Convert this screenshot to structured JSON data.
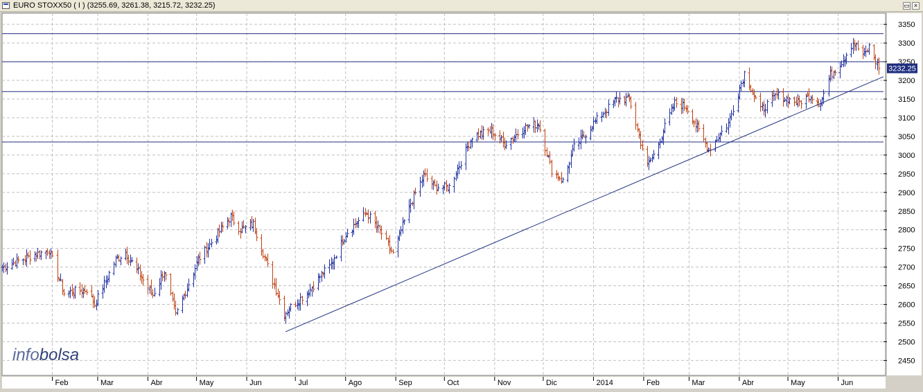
{
  "window": {
    "title": "EURO STOXX50 ( I ) (3255.69, 3261.38, 3215.72, 3232.25)",
    "restore_label": "▭",
    "close_label": "×"
  },
  "watermark": {
    "prefix": "info",
    "suffix": "bolsa"
  },
  "chart_data": {
    "type": "ohlc",
    "symbol": "EURO STOXX50 ( I )",
    "last_bar": {
      "open": 3255.69,
      "high": 3261.38,
      "low": 3215.72,
      "close": 3232.25
    },
    "price_label": "3232.25",
    "ylim": [
      2410,
      3380
    ],
    "yticks": [
      2450,
      2500,
      2550,
      2600,
      2650,
      2700,
      2750,
      2800,
      2850,
      2900,
      2950,
      3000,
      3050,
      3100,
      3150,
      3200,
      3250,
      3300,
      3350
    ],
    "xlim": [
      "2013-01-01",
      "2014-06-29"
    ],
    "xticks": [
      {
        "label": "Feb",
        "date": "2013-02-01"
      },
      {
        "label": "Mar",
        "date": "2013-03-01"
      },
      {
        "label": "Abr",
        "date": "2013-04-01"
      },
      {
        "label": "May",
        "date": "2013-05-01"
      },
      {
        "label": "Jun",
        "date": "2013-06-01"
      },
      {
        "label": "Jul",
        "date": "2013-07-01"
      },
      {
        "label": "Ago",
        "date": "2013-08-01"
      },
      {
        "label": "Sep",
        "date": "2013-09-01"
      },
      {
        "label": "Oct",
        "date": "2013-10-01"
      },
      {
        "label": "Nov",
        "date": "2013-11-01"
      },
      {
        "label": "Dic",
        "date": "2013-12-01"
      },
      {
        "label": "2014",
        "date": "2014-01-01"
      },
      {
        "label": "Feb",
        "date": "2014-02-01"
      },
      {
        "label": "Mar",
        "date": "2014-03-01"
      },
      {
        "label": "Abr",
        "date": "2014-04-01"
      },
      {
        "label": "May",
        "date": "2014-05-01"
      },
      {
        "label": "Jun",
        "date": "2014-06-01"
      }
    ],
    "horizontal_lines": [
      3325,
      3250,
      3170,
      3035
    ],
    "trendline": {
      "start": {
        "date": "2013-06-25",
        "value": 2527
      },
      "end": {
        "date": "2014-06-29",
        "value": 3210
      }
    },
    "grid": true,
    "colors": {
      "up": "#1f2fa0",
      "down": "#c04010",
      "lines": "#1f2f7f",
      "grid": "#c0c0c0"
    },
    "anchors": [
      [
        "2013-01-01",
        2700
      ],
      [
        "2013-01-22",
        2735
      ],
      [
        "2013-01-30",
        2745
      ],
      [
        "2013-02-08",
        2630
      ],
      [
        "2013-02-22",
        2640
      ],
      [
        "2013-02-27",
        2600
      ],
      [
        "2013-03-12",
        2720
      ],
      [
        "2013-03-18",
        2740
      ],
      [
        "2013-04-04",
        2625
      ],
      [
        "2013-04-11",
        2690
      ],
      [
        "2013-04-18",
        2570
      ],
      [
        "2013-05-02",
        2720
      ],
      [
        "2013-05-22",
        2835
      ],
      [
        "2013-05-28",
        2800
      ],
      [
        "2013-06-05",
        2815
      ],
      [
        "2013-06-24",
        2575
      ],
      [
        "2013-06-27",
        2590
      ],
      [
        "2013-07-09",
        2635
      ],
      [
        "2013-07-17",
        2680
      ],
      [
        "2013-07-22",
        2700
      ],
      [
        "2013-08-01",
        2790
      ],
      [
        "2013-08-14",
        2845
      ],
      [
        "2013-08-23",
        2790
      ],
      [
        "2013-08-30",
        2735
      ],
      [
        "2013-09-10",
        2870
      ],
      [
        "2013-09-18",
        2945
      ],
      [
        "2013-09-25",
        2915
      ],
      [
        "2013-10-04",
        2915
      ],
      [
        "2013-10-18",
        3050
      ],
      [
        "2013-10-30",
        3065
      ],
      [
        "2013-11-07",
        3030
      ],
      [
        "2013-11-20",
        3075
      ],
      [
        "2013-11-28",
        3085
      ],
      [
        "2013-12-06",
        2960
      ],
      [
        "2013-12-13",
        2930
      ],
      [
        "2013-12-20",
        3020
      ],
      [
        "2014-01-02",
        3090
      ],
      [
        "2014-01-15",
        3150
      ],
      [
        "2014-01-23",
        3150
      ],
      [
        "2014-02-03",
        2970
      ],
      [
        "2014-02-07",
        3000
      ],
      [
        "2014-02-20",
        3140
      ],
      [
        "2014-02-27",
        3130
      ],
      [
        "2014-03-13",
        3015
      ],
      [
        "2014-03-25",
        3085
      ],
      [
        "2014-04-04",
        3220
      ],
      [
        "2014-04-14",
        3120
      ],
      [
        "2014-04-24",
        3160
      ],
      [
        "2014-05-07",
        3140
      ],
      [
        "2014-05-15",
        3160
      ],
      [
        "2014-05-21",
        3140
      ],
      [
        "2014-05-27",
        3215
      ],
      [
        "2014-06-03",
        3250
      ],
      [
        "2014-06-10",
        3300
      ],
      [
        "2014-06-17",
        3265
      ],
      [
        "2014-06-20",
        3290
      ],
      [
        "2014-06-26",
        3232
      ]
    ]
  }
}
